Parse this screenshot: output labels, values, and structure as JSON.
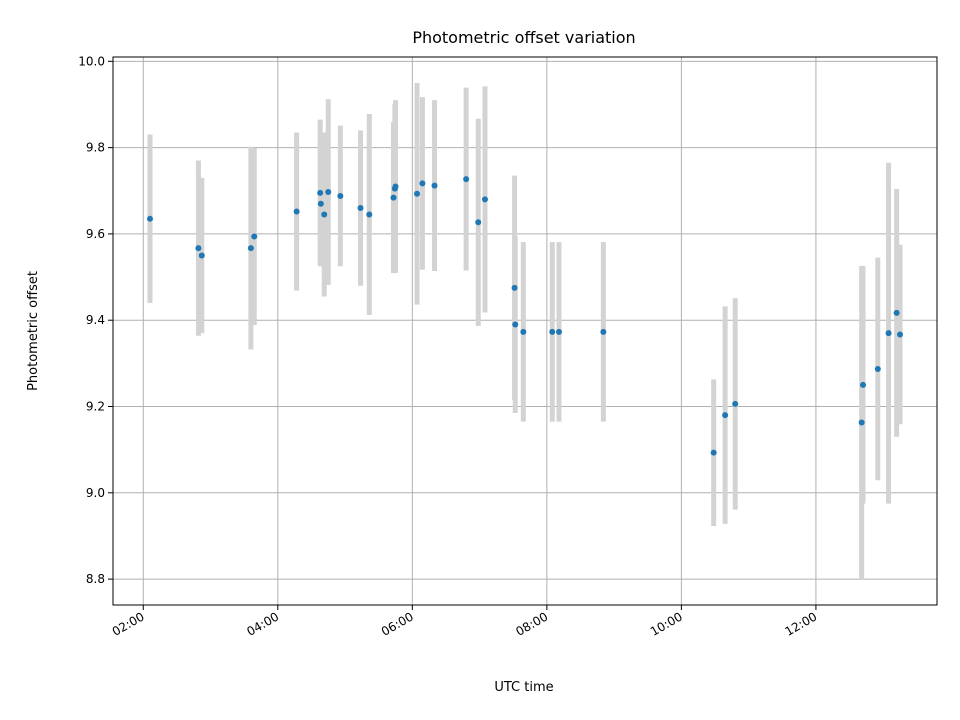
{
  "chart_data": {
    "type": "scatter",
    "title": "Photometric offset variation",
    "xlabel": "UTC time",
    "ylabel": "Photometric offset",
    "x_unit": "hour of day (UTC)",
    "xlim": [
      1.55,
      13.8
    ],
    "ylim": [
      8.74,
      10.01
    ],
    "xticks": [
      2,
      4,
      6,
      8,
      10,
      12
    ],
    "xtick_labels": [
      "02:00",
      "04:00",
      "06:00",
      "08:00",
      "10:00",
      "12:00"
    ],
    "yticks": [
      8.8,
      9.0,
      9.2,
      9.4,
      9.6,
      9.8,
      10.0
    ],
    "ytick_labels": [
      "8.8",
      "9.0",
      "9.2",
      "9.4",
      "9.6",
      "9.8",
      "10.0"
    ],
    "grid": true,
    "colors": {
      "point": "#1f77b4",
      "errorbar": "#d3d3d3",
      "grid": "#b0b0b0"
    },
    "points": [
      {
        "x": 2.1,
        "y": 9.635,
        "err": 0.195
      },
      {
        "x": 2.82,
        "y": 9.567,
        "err": 0.203
      },
      {
        "x": 2.87,
        "y": 9.55,
        "err": 0.18
      },
      {
        "x": 3.6,
        "y": 9.567,
        "err": 0.235
      },
      {
        "x": 3.65,
        "y": 9.594,
        "err": 0.205
      },
      {
        "x": 4.28,
        "y": 9.652,
        "err": 0.183
      },
      {
        "x": 4.63,
        "y": 9.695,
        "err": 0.17
      },
      {
        "x": 4.64,
        "y": 9.67,
        "err": 0.145
      },
      {
        "x": 4.69,
        "y": 9.645,
        "err": 0.19
      },
      {
        "x": 4.75,
        "y": 9.697,
        "err": 0.215
      },
      {
        "x": 4.93,
        "y": 9.688,
        "err": 0.163
      },
      {
        "x": 5.23,
        "y": 9.66,
        "err": 0.18
      },
      {
        "x": 5.36,
        "y": 9.645,
        "err": 0.233
      },
      {
        "x": 5.72,
        "y": 9.684,
        "err": 0.175
      },
      {
        "x": 5.74,
        "y": 9.705,
        "err": 0.195
      },
      {
        "x": 5.75,
        "y": 9.71,
        "err": 0.2
      },
      {
        "x": 6.07,
        "y": 9.693,
        "err": 0.257
      },
      {
        "x": 6.15,
        "y": 9.717,
        "err": 0.2
      },
      {
        "x": 6.33,
        "y": 9.712,
        "err": 0.198
      },
      {
        "x": 6.8,
        "y": 9.727,
        "err": 0.212
      },
      {
        "x": 6.98,
        "y": 9.627,
        "err": 0.24
      },
      {
        "x": 7.08,
        "y": 9.68,
        "err": 0.262
      },
      {
        "x": 7.52,
        "y": 9.475,
        "err": 0.26
      },
      {
        "x": 7.53,
        "y": 9.39,
        "err": 0.205
      },
      {
        "x": 7.65,
        "y": 9.373,
        "err": 0.208
      },
      {
        "x": 8.08,
        "y": 9.373,
        "err": 0.208
      },
      {
        "x": 8.18,
        "y": 9.373,
        "err": 0.208
      },
      {
        "x": 8.84,
        "y": 9.373,
        "err": 0.208
      },
      {
        "x": 10.48,
        "y": 9.093,
        "err": 0.17
      },
      {
        "x": 10.65,
        "y": 9.18,
        "err": 0.252
      },
      {
        "x": 10.8,
        "y": 9.206,
        "err": 0.245
      },
      {
        "x": 12.68,
        "y": 9.163,
        "err": 0.363
      },
      {
        "x": 12.7,
        "y": 9.25,
        "err": 0.275
      },
      {
        "x": 12.92,
        "y": 9.287,
        "err": 0.258
      },
      {
        "x": 13.08,
        "y": 9.37,
        "err": 0.395
      },
      {
        "x": 13.2,
        "y": 9.417,
        "err": 0.287
      },
      {
        "x": 13.25,
        "y": 9.367,
        "err": 0.208
      }
    ]
  }
}
